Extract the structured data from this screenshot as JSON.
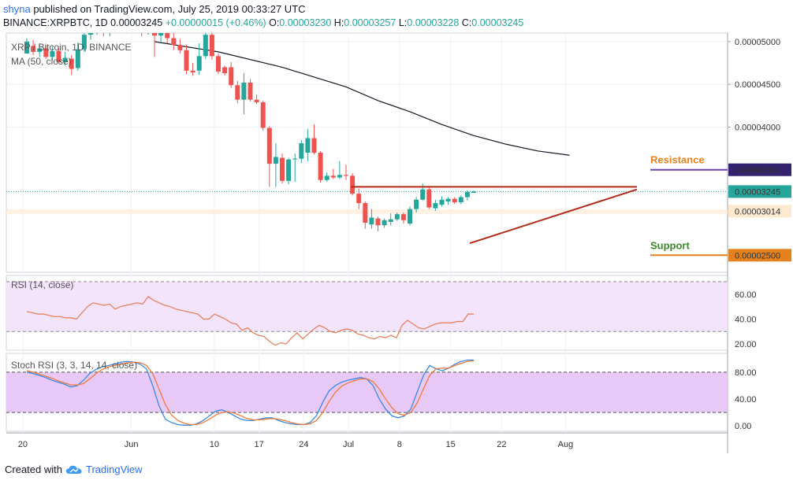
{
  "header": {
    "author": "shyna",
    "published": "published on TradingView.com, July 25, 2019 00:33:27 UTC",
    "symbol": "BINANCE:XRPBTC, 1D",
    "price": "0.00003245",
    "change": "+0.00000015 (+0.46%)",
    "ohlc": {
      "o_label": "O:",
      "o": "0.00003230",
      "h_label": "H:",
      "h": "0.00003257",
      "l_label": "L:",
      "l": "0.00003228",
      "c_label": "C:",
      "c": "0.00003245"
    }
  },
  "footer": {
    "created_with": "Created with",
    "brand": "TradingView",
    "logo_icon": "tradingview-cloud-icon"
  },
  "colors": {
    "up": "#26a69a",
    "down": "#ef5350",
    "ma": "#131722",
    "trendline": "#b22a18",
    "resistance": "#e6821e",
    "support": "#3a8a2c",
    "rsi": "#e8825d",
    "rsi_band": "#f3e3fb",
    "stoch_k": "#3a8ae6",
    "stoch_d": "#f07a3c",
    "stoch_band": "#e8c8f6"
  },
  "chart_data": [
    {
      "type": "candlestick",
      "legend": [
        "XRP / Bitcoin, 1D, BINANCE",
        "MA (50, close)"
      ],
      "xlabel": "",
      "ylabel": "",
      "x_ticks": [
        "20",
        "Jun",
        "10",
        "17",
        "24",
        "Jul",
        "8",
        "15",
        "22",
        "Aug"
      ],
      "y_ticks": [
        "0.00005000",
        "0.00004500",
        "0.00004000",
        "0.00003500",
        "0.00003014",
        "0.00002500"
      ],
      "ylim": [
        2.3e-05,
        5.1e-05
      ],
      "annotations": [
        {
          "text": "Resistance",
          "value": 3.5e-05,
          "label": "0.00003500"
        },
        {
          "text": "Support",
          "value": 2.5e-05,
          "label": "0.00002500"
        }
      ],
      "last_price": {
        "value": 3.245e-05,
        "label": "0.00003245"
      },
      "trendlines": [
        {
          "name": "",
          "points": [
            [
              3.3e-05,
              3.3e-05
            ]
          ],
          "note": ""
        }
      ],
      "candles": [
        [
          4.86e-05,
          5e-05,
          5.04e-05,
          4.86e-05
        ],
        [
          4.95e-05,
          4.88e-05,
          5.02e-05,
          4.84e-05
        ],
        [
          4.88e-05,
          4.92e-05,
          4.98e-05,
          4.82e-05
        ],
        [
          4.92e-05,
          4.82e-05,
          4.96e-05,
          4.8e-05
        ],
        [
          4.82e-05,
          4.89e-05,
          4.94e-05,
          4.78e-05
        ],
        [
          4.89e-05,
          4.76e-05,
          4.92e-05,
          4.74e-05
        ],
        [
          4.76e-05,
          4.81e-05,
          4.88e-05,
          4.72e-05
        ],
        [
          4.8e-05,
          4.68e-05,
          4.84e-05,
          4.61e-05
        ],
        [
          4.69e-05,
          4.91e-05,
          4.99e-05,
          4.66e-05
        ],
        [
          4.91e-05,
          5.08e-05,
          5.15e-05,
          4.88e-05
        ],
        [
          5.08e-05,
          5.15e-05,
          5.3e-05,
          5.02e-05
        ],
        [
          5.14e-05,
          5.2e-05,
          5.35e-05,
          5.08e-05
        ],
        [
          5.2e-05,
          5.13e-05,
          5.3e-05,
          5.06e-05
        ],
        [
          5.13e-05,
          5.22e-05,
          5.35e-05,
          5.06e-05
        ],
        [
          5.22e-05,
          5.16e-05,
          5.33e-05,
          5.1e-05
        ],
        [
          5.16e-05,
          5.25e-05,
          5.4e-05,
          5.1e-05
        ],
        [
          5.25e-05,
          5.19e-05,
          5.38e-05,
          5.12e-05
        ],
        [
          5.19e-05,
          5.23e-05,
          5.36e-05,
          5.11e-05
        ],
        [
          5.23e-05,
          5.12e-05,
          5.3e-05,
          5.06e-05
        ],
        [
          5.12e-05,
          5.17e-05,
          5.32e-05,
          5.08e-05
        ],
        [
          5.16e-05,
          5.07e-05,
          5.29e-05,
          4.82e-05
        ],
        [
          5.07e-05,
          5.11e-05,
          5.25e-05,
          5e-05
        ],
        [
          5.12e-05,
          5.04e-05,
          5.2e-05,
          4.98e-05
        ],
        [
          5.04e-05,
          4.96e-05,
          5.1e-05,
          4.9e-05
        ],
        [
          4.96e-05,
          4.9e-05,
          5.03e-05,
          4.86e-05
        ],
        [
          4.9e-05,
          4.66e-05,
          4.96e-05,
          4.62e-05
        ],
        [
          4.66e-05,
          4.64e-05,
          4.75e-05,
          4.6e-05
        ],
        [
          4.66e-05,
          4.83e-05,
          4.98e-05,
          4.61e-05
        ],
        [
          4.83e-05,
          5.08e-05,
          5.15e-05,
          4.8e-05
        ],
        [
          5.08e-05,
          4.83e-05,
          5.12e-05,
          4.79e-05
        ],
        [
          4.83e-05,
          4.65e-05,
          4.86e-05,
          4.62e-05
        ],
        [
          4.7e-05,
          4.63e-05,
          4.72e-05,
          4.6e-05
        ],
        [
          4.7e-05,
          4.49e-05,
          4.76e-05,
          4.46e-05
        ],
        [
          4.49e-05,
          4.32e-05,
          4.54e-05,
          4.28e-05
        ],
        [
          4.32e-05,
          4.52e-05,
          4.63e-05,
          4.15e-05
        ],
        [
          4.52e-05,
          4.32e-05,
          4.56e-05,
          4.3e-05
        ],
        [
          4.32e-05,
          4.29e-05,
          4.38e-05,
          4.27e-05
        ],
        [
          4.29e-05,
          3.99e-05,
          4.31e-05,
          3.96e-05
        ],
        [
          3.99e-05,
          3.57e-05,
          4.01e-05,
          3.3e-05
        ],
        [
          3.57e-05,
          3.65e-05,
          3.81e-05,
          3.3e-05
        ],
        [
          3.64e-05,
          3.37e-05,
          3.69e-05,
          3.34e-05
        ],
        [
          3.37e-05,
          3.62e-05,
          3.64e-05,
          3.33e-05
        ],
        [
          3.62e-05,
          3.63e-05,
          3.69e-05,
          3.36e-05
        ],
        [
          3.63e-05,
          3.81e-05,
          3.85e-05,
          3.58e-05
        ],
        [
          3.7e-05,
          3.87e-05,
          3.98e-05,
          3.6e-05
        ],
        [
          3.87e-05,
          3.7e-05,
          4.03e-05,
          3.68e-05
        ],
        [
          3.7e-05,
          3.38e-05,
          3.72e-05,
          3.35e-05
        ],
        [
          3.38e-05,
          3.43e-05,
          3.47e-05,
          3.36e-05
        ],
        [
          3.43e-05,
          3.41e-05,
          3.51e-05,
          3.39e-05
        ],
        [
          3.41e-05,
          3.44e-05,
          3.6e-05,
          3.39e-05
        ],
        [
          3.44e-05,
          3.43e-05,
          3.56e-05,
          3.38e-05
        ],
        [
          3.43e-05,
          3.22e-05,
          3.46e-05,
          3.2e-05
        ],
        [
          3.22e-05,
          3.11e-05,
          3.28e-05,
          3.04e-05
        ],
        [
          3.11e-05,
          2.88e-05,
          3.13e-05,
          2.81e-05
        ],
        [
          2.86e-05,
          2.94e-05,
          3.04e-05,
          2.81e-05
        ],
        [
          2.93e-05,
          2.85e-05,
          2.95e-05,
          2.78e-05
        ],
        [
          2.85e-05,
          2.91e-05,
          2.93e-05,
          2.82e-05
        ],
        [
          2.89e-05,
          2.92e-05,
          2.99e-05,
          2.85e-05
        ],
        [
          2.92e-05,
          2.98e-05,
          3e-05,
          2.9e-05
        ],
        [
          2.98e-05,
          2.91e-05,
          3e-05,
          2.87e-05
        ],
        [
          2.87e-05,
          3.04e-05,
          3.07e-05,
          2.85e-05
        ],
        [
          3.04e-05,
          3.15e-05,
          3.18e-05,
          3e-05
        ],
        [
          3.15e-05,
          3.27e-05,
          3.34e-05,
          3.14e-05
        ],
        [
          3.27e-05,
          3.06e-05,
          3.29e-05,
          3.04e-05
        ],
        [
          3.05e-05,
          3.11e-05,
          3.15e-05,
          3.02e-05
        ],
        [
          3.09e-05,
          3.15e-05,
          3.19e-05,
          3.07e-05
        ],
        [
          3.13e-05,
          3.16e-05,
          3.18e-05,
          3.09e-05
        ],
        [
          3.16e-05,
          3.12e-05,
          3.18e-05,
          3.1e-05
        ],
        [
          3.12e-05,
          3.18e-05,
          3.2e-05,
          3.1e-05
        ],
        [
          3.18e-05,
          3.24e-05,
          3.26e-05,
          3.14e-05
        ],
        [
          3.23e-05,
          3.245e-05,
          3.257e-05,
          3.228e-05
        ]
      ],
      "ma50": [
        [
          20,
          5e-05
        ],
        [
          30,
          4.88e-05
        ],
        [
          40,
          4.7e-05
        ],
        [
          50,
          4.47e-05
        ],
        [
          55,
          4.31e-05
        ],
        [
          60,
          4.18e-05
        ],
        [
          65,
          4.03e-05
        ],
        [
          70,
          3.9e-05
        ],
        [
          75,
          3.8e-05
        ],
        [
          80,
          3.72e-05
        ],
        [
          85,
          3.67e-05
        ]
      ]
    },
    {
      "type": "line",
      "legend": "RSI (14, close)",
      "y_ticks": [
        "60.00",
        "40.00",
        "20.00"
      ],
      "ylim": [
        15,
        75
      ],
      "band": [
        30,
        70
      ],
      "values": [
        46,
        45,
        44,
        44,
        43,
        42,
        42,
        41,
        41,
        40,
        45,
        50,
        53,
        52,
        51,
        52,
        48,
        50,
        51,
        52,
        53,
        52,
        58,
        55,
        53,
        51,
        50,
        48,
        47,
        46,
        45,
        44,
        40,
        40,
        44,
        42,
        40,
        37,
        36,
        31,
        33,
        29,
        27,
        26,
        22,
        19,
        21,
        20,
        25,
        29,
        24,
        28,
        32,
        35,
        33,
        30,
        29,
        31,
        32,
        31,
        28,
        27,
        25,
        24,
        26,
        25,
        27,
        25,
        35,
        39,
        36,
        33,
        32,
        34,
        36,
        37,
        37,
        37,
        38,
        38,
        44,
        44
      ]
    },
    {
      "type": "line",
      "legend": "Stoch RSI (3, 3, 14, 14, close)",
      "y_ticks": [
        "80.00",
        "40.00",
        "0.00"
      ],
      "ylim": [
        -8,
        108
      ],
      "band": [
        20,
        80
      ],
      "series": [
        {
          "name": "",
          "values": [
            80,
            78,
            75,
            72,
            68,
            65,
            62,
            58,
            60,
            68,
            78,
            84,
            88,
            90,
            92,
            95,
            96,
            95,
            92,
            85,
            60,
            30,
            10,
            5,
            2,
            1,
            1,
            3,
            8,
            15,
            22,
            24,
            20,
            15,
            10,
            8,
            8,
            10,
            12,
            12,
            8,
            5,
            3,
            2,
            2,
            5,
            15,
            35,
            52,
            60,
            65,
            68,
            70,
            72,
            70,
            60,
            40,
            25,
            15,
            12,
            15,
            25,
            50,
            75,
            90,
            85,
            82,
            86,
            92,
            96,
            98,
            98
          ]
        },
        {
          "name": "",
          "values": [
            82,
            80,
            77,
            74,
            71,
            67,
            64,
            61,
            61,
            63,
            70,
            78,
            84,
            88,
            90,
            92,
            94,
            95,
            94,
            90,
            78,
            55,
            32,
            16,
            8,
            4,
            2,
            2,
            5,
            10,
            16,
            20,
            21,
            19,
            15,
            11,
            9,
            9,
            10,
            11,
            10,
            8,
            5,
            3,
            2,
            3,
            8,
            20,
            36,
            50,
            59,
            64,
            67,
            70,
            70,
            66,
            55,
            40,
            27,
            18,
            16,
            20,
            34,
            55,
            75,
            85,
            86,
            86,
            90,
            93,
            96,
            97
          ]
        }
      ]
    }
  ]
}
